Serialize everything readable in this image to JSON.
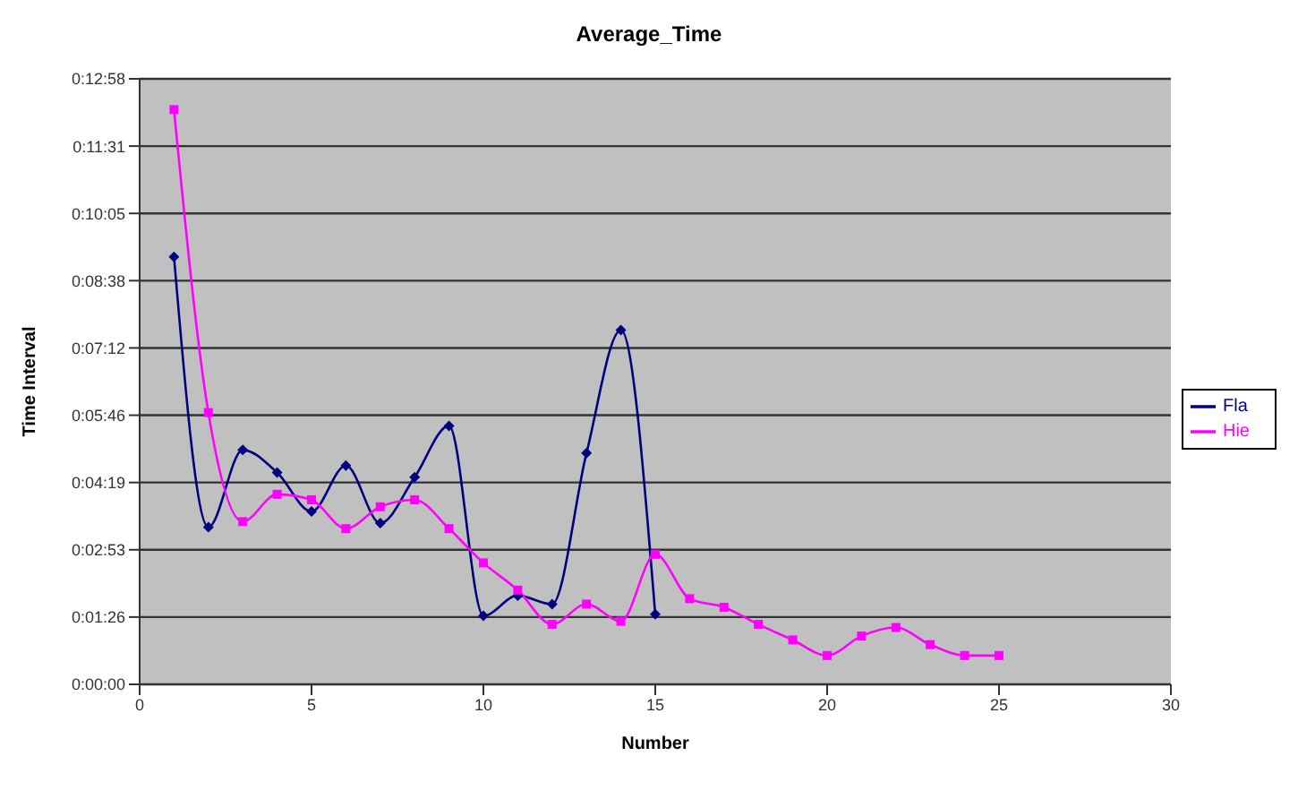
{
  "chart_data": {
    "type": "line",
    "title": "Average_Time",
    "xlabel": "Number",
    "ylabel": "Time Interval",
    "xlim": [
      0,
      30
    ],
    "xticks": [
      0,
      5,
      10,
      15,
      20,
      25,
      30
    ],
    "ylim": [
      0,
      777.6
    ],
    "yticks": [
      {
        "value": 0,
        "label": "0:00:00"
      },
      {
        "value": 86.4,
        "label": "0:01:26"
      },
      {
        "value": 172.8,
        "label": "0:02:53"
      },
      {
        "value": 259.2,
        "label": "0:04:19"
      },
      {
        "value": 345.6,
        "label": "0:05:46"
      },
      {
        "value": 432,
        "label": "0:07:12"
      },
      {
        "value": 518.4,
        "label": "0:08:38"
      },
      {
        "value": 604.8,
        "label": "0:10:05"
      },
      {
        "value": 691.2,
        "label": "0:11:31"
      },
      {
        "value": 777.6,
        "label": "0:12:58"
      }
    ],
    "grid": "y",
    "legend": "right",
    "series": [
      {
        "name": "Fla",
        "color": "#000080",
        "marker": "diamond",
        "x": [
          1,
          2,
          3,
          4,
          5,
          6,
          7,
          8,
          9,
          10,
          11,
          12,
          13,
          14,
          15
        ],
        "values": [
          549,
          202,
          301,
          272,
          222,
          281,
          207,
          266,
          332,
          88,
          114,
          103,
          297,
          455,
          90
        ]
      },
      {
        "name": "Hie",
        "color": "#ff00ff",
        "marker": "square",
        "x": [
          1,
          2,
          3,
          4,
          5,
          6,
          7,
          8,
          9,
          10,
          11,
          12,
          13,
          14,
          15,
          16,
          17,
          18,
          19,
          20,
          21,
          22,
          23,
          24,
          25
        ],
        "values": [
          738,
          349,
          209,
          244,
          237,
          200,
          228,
          237,
          200,
          156,
          121,
          77,
          103,
          81,
          167,
          110,
          99,
          77,
          57,
          37,
          62,
          73,
          51,
          37,
          37
        ]
      }
    ]
  }
}
